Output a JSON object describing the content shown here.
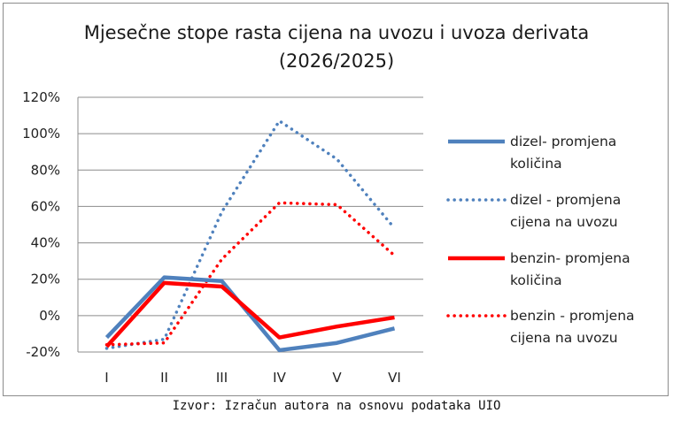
{
  "chart_data": {
    "type": "line",
    "title_lines": [
      "Mjesečne stope rasta cijena na uvozu i uvoza derivata",
      "(2026/2025)"
    ],
    "categories": [
      "I",
      "II",
      "III",
      "IV",
      "V",
      "VI"
    ],
    "y_ticks": [
      "120%",
      "100%",
      "80%",
      "60%",
      "40%",
      "20%",
      "0%",
      "-20%"
    ],
    "ylim": [
      -20,
      120
    ],
    "grid": true,
    "legend_position": "right",
    "series": [
      {
        "name": "dizel- promjena količina",
        "style": "solid",
        "color": "#4f81bd",
        "values": [
          -12,
          21,
          19,
          -19,
          -15,
          -7
        ]
      },
      {
        "name": "dizel - promjena cijena na uvozu",
        "style": "dotted",
        "color": "#4f81bd",
        "values": [
          -18,
          -13,
          57,
          107,
          86,
          48
        ]
      },
      {
        "name": "benzin- promjena količina",
        "style": "solid",
        "color": "#ff0000",
        "values": [
          -17,
          18,
          16,
          -12,
          -6,
          -1
        ]
      },
      {
        "name": "benzin - promjena cijena na uvozu",
        "style": "dotted",
        "color": "#ff0000",
        "values": [
          -16,
          -15,
          31,
          62,
          61,
          33
        ]
      }
    ]
  },
  "legend": [
    {
      "line1": "dizel- promjena",
      "line2": "količina"
    },
    {
      "line1": "dizel - promjena",
      "line2": "cijena na uvozu"
    },
    {
      "line1": "benzin- promjena",
      "line2": "količina"
    },
    {
      "line1": "benzin - promjena",
      "line2": "cijena na uvozu"
    }
  ],
  "source": "Izvor: Izračun autora na osnovu podataka UIO"
}
